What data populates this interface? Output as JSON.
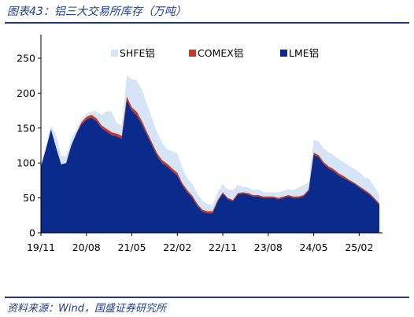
{
  "figure": {
    "title": "图表43：铝三大交易所库存（万吨）",
    "source": "资料来源：Wind，国盛证券研究所"
  },
  "colors": {
    "shfe": "#d6e5f5",
    "comex": "#c0392b",
    "lme": "#0a2a8c",
    "frame": "#1f3c88"
  },
  "chart_data": {
    "type": "area",
    "stacked": true,
    "title": "",
    "xlabel": "",
    "ylabel": "",
    "ylim": [
      0,
      250
    ],
    "yticks": [
      0,
      50,
      100,
      150,
      200,
      250
    ],
    "xlim": [
      "2019-11",
      "2025-06"
    ],
    "xticks": [
      "19/11",
      "20/08",
      "21/05",
      "22/02",
      "22/11",
      "23/08",
      "24/05",
      "25/02"
    ],
    "legend_position": "top",
    "x": [
      "2019-11",
      "2019-12",
      "2020-01",
      "2020-02",
      "2020-03",
      "2020-04",
      "2020-05",
      "2020-06",
      "2020-07",
      "2020-08",
      "2020-09",
      "2020-10",
      "2020-11",
      "2020-12",
      "2021-01",
      "2021-02",
      "2021-03",
      "2021-04",
      "2021-05",
      "2021-06",
      "2021-07",
      "2021-08",
      "2021-09",
      "2021-10",
      "2021-11",
      "2021-12",
      "2022-01",
      "2022-02",
      "2022-03",
      "2022-04",
      "2022-05",
      "2022-06",
      "2022-07",
      "2022-08",
      "2022-09",
      "2022-10",
      "2022-11",
      "2022-12",
      "2023-01",
      "2023-02",
      "2023-03",
      "2023-04",
      "2023-05",
      "2023-06",
      "2023-07",
      "2023-08",
      "2023-09",
      "2023-10",
      "2023-11",
      "2023-12",
      "2024-01",
      "2024-02",
      "2024-03",
      "2024-04",
      "2024-05",
      "2024-06",
      "2024-07",
      "2024-08",
      "2024-09",
      "2024-10",
      "2024-11",
      "2024-12",
      "2025-01",
      "2025-02",
      "2025-03",
      "2025-04",
      "2025-05",
      "2025-06"
    ],
    "series": [
      {
        "name": "LME铝",
        "values": [
          95,
          120,
          148,
          122,
          98,
          100,
          125,
          142,
          155,
          162,
          165,
          160,
          150,
          145,
          140,
          138,
          135,
          190,
          175,
          168,
          155,
          140,
          125,
          110,
          100,
          95,
          88,
          82,
          68,
          58,
          50,
          38,
          30,
          28,
          28,
          45,
          56,
          48,
          45,
          55,
          56,
          55,
          52,
          52,
          50,
          50,
          50,
          48,
          50,
          52,
          50,
          50,
          52,
          60,
          112,
          108,
          98,
          92,
          88,
          82,
          78,
          74,
          70,
          65,
          60,
          55,
          48,
          40
        ]
      },
      {
        "name": "COMEX铝",
        "values": [
          0,
          0,
          0,
          0,
          0,
          0,
          0,
          0,
          3,
          4,
          4,
          4,
          4,
          4,
          4,
          4,
          4,
          5,
          5,
          5,
          5,
          4,
          4,
          4,
          4,
          4,
          4,
          4,
          3,
          3,
          3,
          3,
          3,
          3,
          3,
          2,
          2,
          2,
          2,
          2,
          2,
          2,
          2,
          2,
          2,
          2,
          2,
          2,
          2,
          2,
          2,
          2,
          2,
          2,
          3,
          3,
          3,
          3,
          3,
          3,
          3,
          2,
          2,
          2,
          2,
          2,
          2,
          2
        ]
      },
      {
        "name": "SHFE铝",
        "values": [
          3,
          5,
          5,
          18,
          12,
          10,
          10,
          5,
          5,
          5,
          5,
          10,
          15,
          25,
          30,
          15,
          15,
          30,
          40,
          45,
          45,
          40,
          35,
          30,
          25,
          20,
          25,
          28,
          22,
          17,
          17,
          15,
          13,
          10,
          9,
          11,
          12,
          12,
          14,
          12,
          8,
          8,
          7,
          8,
          7,
          6,
          6,
          8,
          8,
          8,
          9,
          13,
          15,
          10,
          18,
          20,
          20,
          20,
          20,
          20,
          20,
          20,
          20,
          20,
          18,
          20,
          16,
          13
        ]
      }
    ]
  }
}
